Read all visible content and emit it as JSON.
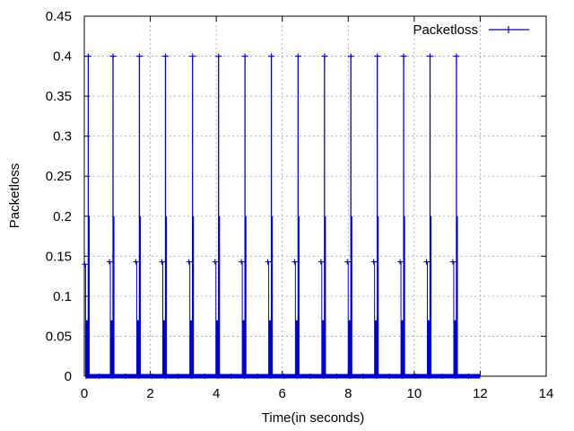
{
  "chart_data": {
    "type": "line",
    "title": "",
    "xlabel": "Time(in seconds)",
    "ylabel": "Packetloss",
    "xlim": [
      0,
      14
    ],
    "ylim": [
      0,
      0.45
    ],
    "xticks": [
      "0",
      "2",
      "4",
      "6",
      "8",
      "10",
      "12",
      "14"
    ],
    "yticks": [
      "0",
      "0.05",
      "0.1",
      "0.15",
      "0.2",
      "0.25",
      "0.3",
      "0.35",
      "0.4",
      "0.45"
    ],
    "grid": true,
    "legend_position": "top-right",
    "series": [
      {
        "name": "Packetloss",
        "color": "#0000cc",
        "baseline_range": [
          0.05,
          12.0
        ],
        "burst_times": [
          0.12,
          0.87,
          1.67,
          2.46,
          3.28,
          4.07,
          4.87,
          5.67,
          6.48,
          7.28,
          8.08,
          8.88,
          9.68,
          10.48,
          11.28
        ],
        "bursts": [
          {
            "x": 0.12,
            "peak": 0.4,
            "mid": 0.2,
            "low": 0.07,
            "side": 0.14
          },
          {
            "x": 0.87,
            "peak": 0.4,
            "mid": 0.2,
            "low": 0.07,
            "side": 0.143
          },
          {
            "x": 1.67,
            "peak": 0.4,
            "mid": 0.2,
            "low": 0.07,
            "side": 0.143
          },
          {
            "x": 2.46,
            "peak": 0.4,
            "mid": 0.2,
            "low": 0.07,
            "side": 0.143
          },
          {
            "x": 3.28,
            "peak": 0.4,
            "mid": 0.2,
            "low": 0.07,
            "side": 0.143
          },
          {
            "x": 4.07,
            "peak": 0.4,
            "mid": 0.2,
            "low": 0.07,
            "side": 0.143
          },
          {
            "x": 4.87,
            "peak": 0.4,
            "mid": 0.2,
            "low": 0.07,
            "side": 0.143
          },
          {
            "x": 5.67,
            "peak": 0.4,
            "mid": 0.2,
            "low": 0.07,
            "side": 0.143
          },
          {
            "x": 6.48,
            "peak": 0.4,
            "mid": 0.2,
            "low": 0.07,
            "side": 0.143
          },
          {
            "x": 7.28,
            "peak": 0.4,
            "mid": 0.2,
            "low": 0.07,
            "side": 0.143
          },
          {
            "x": 8.08,
            "peak": 0.4,
            "mid": 0.2,
            "low": 0.07,
            "side": 0.143
          },
          {
            "x": 8.88,
            "peak": 0.4,
            "mid": 0.2,
            "low": 0.07,
            "side": 0.143
          },
          {
            "x": 9.68,
            "peak": 0.4,
            "mid": 0.2,
            "low": 0.07,
            "side": 0.143
          },
          {
            "x": 10.48,
            "peak": 0.4,
            "mid": 0.2,
            "low": 0.07,
            "side": 0.143
          },
          {
            "x": 11.28,
            "peak": 0.4,
            "mid": 0.2,
            "low": 0.07,
            "side": 0.143
          }
        ]
      }
    ]
  }
}
